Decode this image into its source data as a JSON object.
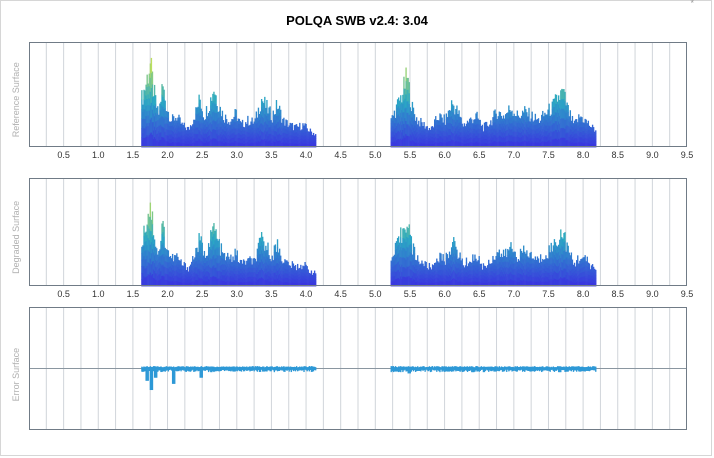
{
  "title": "POLQA SWB v2.4: 3.04",
  "corner_mark": "*",
  "colors": {
    "grid": "#d0d4da",
    "border": "#707b86",
    "zero_line": "#8a96a0",
    "low": "#3a32e0",
    "mid": "#2aa8c4",
    "high": "#e8f040",
    "error": "#2d98d6"
  },
  "chart_data": [
    {
      "type": "bar",
      "name": "reference-surface",
      "ylabel": "Reference Surface",
      "xlim": [
        0,
        9.5
      ],
      "ylim": [
        0,
        1
      ],
      "xticks": [
        "0.5",
        "1.0",
        "1.5",
        "2.0",
        "2.5",
        "3.0",
        "3.5",
        "4.0",
        "4.5",
        "5.0",
        "5.5",
        "6.0",
        "6.5",
        "7.0",
        "7.5",
        "8.0",
        "8.5",
        "9.0",
        "9.5"
      ],
      "segments": [
        {
          "start": 1.62,
          "end": 4.14,
          "peaks": [
            [
              1.62,
              0.55
            ],
            [
              1.68,
              0.72
            ],
            [
              1.74,
              0.95
            ],
            [
              1.8,
              0.6
            ],
            [
              1.86,
              0.35
            ],
            [
              1.92,
              0.7
            ],
            [
              1.98,
              0.45
            ],
            [
              2.05,
              0.3
            ],
            [
              2.12,
              0.35
            ],
            [
              2.2,
              0.25
            ],
            [
              2.3,
              0.2
            ],
            [
              2.4,
              0.4
            ],
            [
              2.46,
              0.55
            ],
            [
              2.52,
              0.35
            ],
            [
              2.6,
              0.5
            ],
            [
              2.66,
              0.68
            ],
            [
              2.72,
              0.5
            ],
            [
              2.8,
              0.35
            ],
            [
              2.9,
              0.3
            ],
            [
              2.98,
              0.38
            ],
            [
              3.05,
              0.25
            ],
            [
              3.15,
              0.3
            ],
            [
              3.25,
              0.28
            ],
            [
              3.35,
              0.55
            ],
            [
              3.42,
              0.45
            ],
            [
              3.5,
              0.35
            ],
            [
              3.58,
              0.48
            ],
            [
              3.66,
              0.3
            ],
            [
              3.75,
              0.25
            ],
            [
              3.85,
              0.22
            ],
            [
              3.95,
              0.25
            ],
            [
              4.05,
              0.18
            ],
            [
              4.12,
              0.15
            ]
          ]
        },
        {
          "start": 5.22,
          "end": 8.18,
          "peaks": [
            [
              5.22,
              0.3
            ],
            [
              5.3,
              0.45
            ],
            [
              5.38,
              0.6
            ],
            [
              5.45,
              0.8
            ],
            [
              5.52,
              0.45
            ],
            [
              5.6,
              0.3
            ],
            [
              5.7,
              0.25
            ],
            [
              5.8,
              0.2
            ],
            [
              5.9,
              0.35
            ],
            [
              6.0,
              0.3
            ],
            [
              6.1,
              0.5
            ],
            [
              6.18,
              0.4
            ],
            [
              6.26,
              0.25
            ],
            [
              6.35,
              0.3
            ],
            [
              6.45,
              0.35
            ],
            [
              6.55,
              0.22
            ],
            [
              6.65,
              0.28
            ],
            [
              6.75,
              0.4
            ],
            [
              6.85,
              0.35
            ],
            [
              6.95,
              0.45
            ],
            [
              7.05,
              0.35
            ],
            [
              7.15,
              0.4
            ],
            [
              7.25,
              0.35
            ],
            [
              7.35,
              0.3
            ],
            [
              7.45,
              0.38
            ],
            [
              7.55,
              0.45
            ],
            [
              7.62,
              0.55
            ],
            [
              7.7,
              0.62
            ],
            [
              7.78,
              0.4
            ],
            [
              7.86,
              0.25
            ],
            [
              7.95,
              0.35
            ],
            [
              8.05,
              0.28
            ],
            [
              8.15,
              0.2
            ]
          ]
        }
      ]
    },
    {
      "type": "bar",
      "name": "degraded-surface",
      "ylabel": "Degraded Surface",
      "xlim": [
        0,
        9.5
      ],
      "ylim": [
        0,
        1
      ],
      "xticks": [
        "0.5",
        "1.0",
        "1.5",
        "2.0",
        "2.5",
        "3.0",
        "3.5",
        "4.0",
        "4.5",
        "5.0",
        "5.5",
        "6.0",
        "6.5",
        "7.0",
        "7.5",
        "8.0",
        "8.5",
        "9.0",
        "9.5"
      ],
      "segments": [
        {
          "start": 1.62,
          "end": 4.14,
          "peaks": [
            [
              1.62,
              0.5
            ],
            [
              1.68,
              0.7
            ],
            [
              1.74,
              0.92
            ],
            [
              1.8,
              0.58
            ],
            [
              1.86,
              0.33
            ],
            [
              1.92,
              0.68
            ],
            [
              1.98,
              0.42
            ],
            [
              2.05,
              0.3
            ],
            [
              2.12,
              0.33
            ],
            [
              2.2,
              0.24
            ],
            [
              2.3,
              0.2
            ],
            [
              2.4,
              0.38
            ],
            [
              2.46,
              0.52
            ],
            [
              2.52,
              0.33
            ],
            [
              2.6,
              0.48
            ],
            [
              2.66,
              0.66
            ],
            [
              2.72,
              0.48
            ],
            [
              2.8,
              0.33
            ],
            [
              2.9,
              0.3
            ],
            [
              2.98,
              0.36
            ],
            [
              3.05,
              0.25
            ],
            [
              3.15,
              0.28
            ],
            [
              3.25,
              0.27
            ],
            [
              3.35,
              0.52
            ],
            [
              3.42,
              0.43
            ],
            [
              3.5,
              0.33
            ],
            [
              3.58,
              0.46
            ],
            [
              3.66,
              0.28
            ],
            [
              3.75,
              0.24
            ],
            [
              3.85,
              0.21
            ],
            [
              3.95,
              0.24
            ],
            [
              4.05,
              0.17
            ],
            [
              4.12,
              0.14
            ]
          ]
        },
        {
          "start": 5.22,
          "end": 8.18,
          "peaks": [
            [
              5.22,
              0.28
            ],
            [
              5.3,
              0.43
            ],
            [
              5.38,
              0.58
            ],
            [
              5.45,
              0.78
            ],
            [
              5.52,
              0.43
            ],
            [
              5.6,
              0.3
            ],
            [
              5.7,
              0.24
            ],
            [
              5.8,
              0.2
            ],
            [
              5.9,
              0.33
            ],
            [
              6.0,
              0.28
            ],
            [
              6.1,
              0.48
            ],
            [
              6.18,
              0.38
            ],
            [
              6.26,
              0.24
            ],
            [
              6.35,
              0.28
            ],
            [
              6.45,
              0.33
            ],
            [
              6.55,
              0.21
            ],
            [
              6.65,
              0.27
            ],
            [
              6.75,
              0.38
            ],
            [
              6.85,
              0.33
            ],
            [
              6.95,
              0.43
            ],
            [
              7.05,
              0.33
            ],
            [
              7.15,
              0.38
            ],
            [
              7.25,
              0.33
            ],
            [
              7.35,
              0.28
            ],
            [
              7.45,
              0.36
            ],
            [
              7.55,
              0.43
            ],
            [
              7.62,
              0.52
            ],
            [
              7.7,
              0.6
            ],
            [
              7.78,
              0.38
            ],
            [
              7.86,
              0.24
            ],
            [
              7.95,
              0.33
            ],
            [
              8.05,
              0.27
            ],
            [
              8.15,
              0.19
            ]
          ]
        }
      ]
    },
    {
      "type": "bar",
      "name": "error-surface",
      "ylabel": "Error Surface",
      "xlim": [
        0,
        9.5
      ],
      "ylim": [
        -1,
        1
      ],
      "segments": [
        {
          "start": 1.62,
          "end": 4.14,
          "dips": [
            [
              1.7,
              -0.2
            ],
            [
              1.76,
              -0.35
            ],
            [
              1.82,
              -0.15
            ],
            [
              2.08,
              -0.25
            ],
            [
              2.48,
              -0.15
            ],
            [
              2.62,
              -0.06
            ],
            [
              2.95,
              -0.05
            ],
            [
              3.38,
              -0.05
            ],
            [
              3.6,
              -0.04
            ]
          ]
        },
        {
          "start": 5.22,
          "end": 8.18,
          "dips": [
            [
              5.3,
              -0.05
            ],
            [
              5.48,
              -0.08
            ],
            [
              5.62,
              -0.04
            ],
            [
              6.05,
              -0.05
            ],
            [
              6.4,
              -0.06
            ],
            [
              6.72,
              -0.05
            ],
            [
              7.2,
              -0.04
            ],
            [
              7.65,
              -0.06
            ],
            [
              8.05,
              -0.04
            ]
          ]
        }
      ]
    }
  ]
}
